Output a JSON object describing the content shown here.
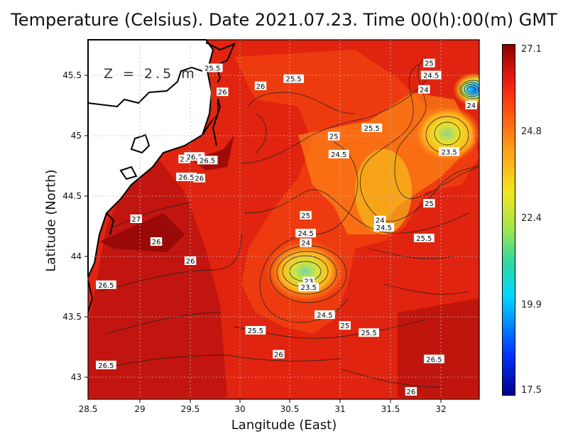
{
  "title": "Temperature (Celsius). Date 2021.07.23. Time 00(h):00(m) GMT",
  "depth_label": "Z = 2.5 m",
  "axes": {
    "xlabel": "Langitude (East)",
    "ylabel": "Latitude (North)",
    "x_ticks": [
      "28.5",
      "29",
      "29.5",
      "30",
      "30.5",
      "31",
      "31.5",
      "32"
    ],
    "y_ticks": [
      "45.5",
      "45",
      "44.5",
      "44",
      "43.5",
      "43"
    ],
    "xlim": [
      28.5,
      32.4
    ],
    "ylim": [
      42.8,
      45.8
    ]
  },
  "colorbar": {
    "ticks": [
      "27.1",
      "24.8",
      "22.4",
      "19.9",
      "17.5"
    ],
    "range": [
      17.5,
      27.1
    ],
    "colors": [
      "#00008b",
      "#0036ff",
      "#00d7ff",
      "#a6e64a",
      "#f3e61f",
      "#ff9f17",
      "#ff4b12",
      "#ea1a12",
      "#8a0000"
    ]
  },
  "contour_labels": [
    {
      "text": "25.5",
      "lon": 29.74,
      "lat": 45.56
    },
    {
      "text": "26",
      "lon": 29.84,
      "lat": 45.36
    },
    {
      "text": "26",
      "lon": 30.22,
      "lat": 45.41
    },
    {
      "text": "25.5",
      "lon": 30.55,
      "lat": 45.47
    },
    {
      "text": "25",
      "lon": 31.9,
      "lat": 45.6
    },
    {
      "text": "24.5",
      "lon": 31.92,
      "lat": 45.5
    },
    {
      "text": "24",
      "lon": 31.85,
      "lat": 45.38
    },
    {
      "text": "24",
      "lon": 32.32,
      "lat": 45.25
    },
    {
      "text": "25.5",
      "lon": 31.33,
      "lat": 45.06
    },
    {
      "text": "25",
      "lon": 30.95,
      "lat": 44.99
    },
    {
      "text": "24.5",
      "lon": 31.0,
      "lat": 44.84
    },
    {
      "text": "23.5",
      "lon": 32.1,
      "lat": 44.86
    },
    {
      "text": "26",
      "lon": 29.46,
      "lat": 44.8
    },
    {
      "text": "26.5",
      "lon": 29.56,
      "lat": 44.82
    },
    {
      "text": "26.5",
      "lon": 29.69,
      "lat": 44.79
    },
    {
      "text": "26.5",
      "lon": 29.48,
      "lat": 44.65
    },
    {
      "text": "26",
      "lon": 29.61,
      "lat": 44.64
    },
    {
      "text": "25",
      "lon": 31.9,
      "lat": 44.43
    },
    {
      "text": "25",
      "lon": 30.67,
      "lat": 44.33
    },
    {
      "text": "24",
      "lon": 31.41,
      "lat": 44.29
    },
    {
      "text": "24.5",
      "lon": 31.45,
      "lat": 44.23
    },
    {
      "text": "27",
      "lon": 28.98,
      "lat": 44.3
    },
    {
      "text": "24.5",
      "lon": 30.67,
      "lat": 44.18
    },
    {
      "text": "24",
      "lon": 30.67,
      "lat": 44.1
    },
    {
      "text": "25.5",
      "lon": 31.85,
      "lat": 44.14
    },
    {
      "text": "26",
      "lon": 29.18,
      "lat": 44.11
    },
    {
      "text": "26",
      "lon": 29.52,
      "lat": 43.95
    },
    {
      "text": "23",
      "lon": 30.7,
      "lat": 43.78
    },
    {
      "text": "23.5",
      "lon": 30.7,
      "lat": 43.73
    },
    {
      "text": "26.5",
      "lon": 28.68,
      "lat": 43.75
    },
    {
      "text": "24.5",
      "lon": 30.86,
      "lat": 43.5
    },
    {
      "text": "25",
      "lon": 31.06,
      "lat": 43.41
    },
    {
      "text": "25.5",
      "lon": 31.3,
      "lat": 43.35
    },
    {
      "text": "25.5",
      "lon": 30.17,
      "lat": 43.37
    },
    {
      "text": "26",
      "lon": 30.4,
      "lat": 43.17
    },
    {
      "text": "26.5",
      "lon": 31.95,
      "lat": 43.13
    },
    {
      "text": "26.5",
      "lon": 28.68,
      "lat": 43.08
    },
    {
      "text": "26",
      "lon": 31.72,
      "lat": 42.86
    }
  ]
}
